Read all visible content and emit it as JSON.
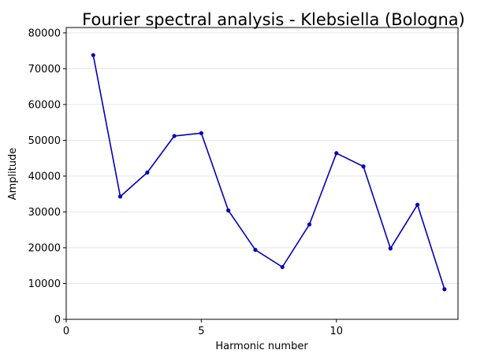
{
  "chart_data": {
    "type": "line",
    "title": "Fourier spectral analysis - Klebsiella (Bologna)",
    "xlabel": "Harmonic number",
    "ylabel": "Amplitude",
    "xlim": [
      0,
      14.5
    ],
    "ylim": [
      0,
      81500
    ],
    "xticks": [
      0,
      5,
      10
    ],
    "yticks": [
      0,
      10000,
      20000,
      30000,
      40000,
      50000,
      60000,
      70000,
      80000
    ],
    "grid": "horizontal",
    "legend": "none",
    "series": [
      {
        "color": "#0000bb",
        "marker": "circle",
        "x": [
          1,
          2,
          3,
          4,
          5,
          6,
          7,
          8,
          9,
          10,
          11,
          12,
          13,
          14
        ],
        "y": [
          73800,
          34300,
          41000,
          51200,
          52000,
          30400,
          19400,
          14600,
          26500,
          46400,
          42700,
          19800,
          32000,
          8400
        ]
      }
    ]
  }
}
